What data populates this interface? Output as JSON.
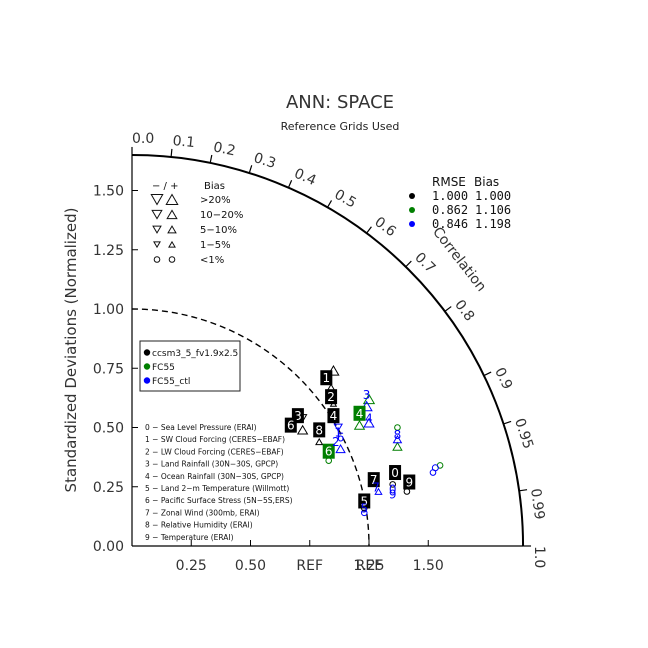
{
  "chart_data": {
    "type": "scatter",
    "title": "ANN: SPACE",
    "subtitle": "Reference Grids Used",
    "ylabel": "Standardized Deviations (Normalized)",
    "arc_label": "Correlation",
    "ref_label": "REF",
    "max_std": 1.65,
    "std_ticks": [
      "0.00",
      "0.25",
      "0.50",
      "0.75",
      "1.00",
      "1.25",
      "1.50"
    ],
    "x_ticks": [
      "0.25",
      "0.50",
      "REF",
      "1.25",
      "1.50"
    ],
    "corr_ticks": [
      "0.0",
      "0.1",
      "0.2",
      "0.3",
      "0.4",
      "0.5",
      "0.6",
      "0.7",
      "0.8",
      "0.9",
      "0.95",
      "0.99",
      "1.0"
    ],
    "bias_legend": {
      "header_minus_plus": "− / +",
      "header_bias": "Bias",
      "rows": [
        {
          "label": ">20%",
          "size": 5.2
        },
        {
          "label": "10−20%",
          "size": 4.4
        },
        {
          "label": "5−10%",
          "size": 3.6
        },
        {
          "label": "1−5%",
          "size": 2.8
        },
        {
          "label": "<1%",
          "size": 2.8
        }
      ]
    },
    "rmse_table": {
      "header_rmse": "RMSE",
      "header_bias": "Bias",
      "rows": [
        {
          "color": "#000000",
          "rmse": "1.000",
          "bias": "1.000"
        },
        {
          "color": "#007f00",
          "rmse": "0.862",
          "bias": "1.106"
        },
        {
          "color": "#0000ff",
          "rmse": "0.846",
          "bias": "1.198"
        }
      ]
    },
    "case_legend": [
      {
        "name": "ccsm3_5_fv1.9x2.5",
        "color": "#000000"
      },
      {
        "name": "FC55",
        "color": "#007f00"
      },
      {
        "name": "FC55_ctl",
        "color": "#0000ff"
      }
    ],
    "variables": [
      "0 − Sea Level Pressure (ERAI)",
      "1 − SW Cloud Forcing (CERES−EBAF)",
      "2 − LW Cloud Forcing (CERES−EBAF)",
      "3 − Land Rainfall (30N−30S, GPCP)",
      "4 − Ocean Rainfall (30N−30S, GPCP)",
      "5 − Land 2−m Temperature (Willmott)",
      "6 − Pacific Surface Stress (5N−5S,ERS)",
      "7 − Zonal Wind (300mb, ERAI)",
      "8 − Relative Humidity (ERAI)",
      "9 − Temperature (ERAI)"
    ],
    "series": [
      {
        "name": "ccsm3_5_fv1.9x2.5",
        "color": "#000000",
        "boxed": true,
        "points": [
          {
            "id": "0",
            "x": 1.11,
            "y": 0.31
          },
          {
            "id": "1",
            "x": 0.82,
            "y": 0.71
          },
          {
            "id": "2",
            "x": 0.84,
            "y": 0.63
          },
          {
            "id": "3",
            "x": 0.7,
            "y": 0.55
          },
          {
            "id": "4",
            "x": 0.85,
            "y": 0.55
          },
          {
            "id": "5",
            "x": 0.98,
            "y": 0.19
          },
          {
            "id": "6",
            "x": 0.67,
            "y": 0.51
          },
          {
            "id": "7",
            "x": 1.02,
            "y": 0.28
          },
          {
            "id": "8",
            "x": 0.79,
            "y": 0.49
          },
          {
            "id": "9",
            "x": 1.17,
            "y": 0.27
          }
        ]
      },
      {
        "name": "FC55",
        "color": "#007f00",
        "boxed": true,
        "points": [
          {
            "id": "4",
            "x": 0.96,
            "y": 0.56
          },
          {
            "id": "6",
            "x": 0.83,
            "y": 0.4
          }
        ]
      },
      {
        "name": "FC55_ctl",
        "color": "#0000ff",
        "boxed": false,
        "points": [
          {
            "id": "0",
            "x": 1.1,
            "y": 0.24
          },
          {
            "id": "1",
            "x": 0.87,
            "y": 0.48
          },
          {
            "id": "2",
            "x": 0.86,
            "y": 0.44
          },
          {
            "id": "3",
            "x": 0.99,
            "y": 0.64
          },
          {
            "id": "4",
            "x": 1.0,
            "y": 0.54
          },
          {
            "id": "5",
            "x": 0.98,
            "y": 0.16
          },
          {
            "id": "6",
            "x": 0.88,
            "y": 0.46
          },
          {
            "id": "7",
            "x": 1.03,
            "y": 0.25
          },
          {
            "id": "8",
            "x": 1.12,
            "y": 0.47
          },
          {
            "id": "9",
            "x": 1.1,
            "y": 0.22
          }
        ]
      }
    ],
    "bias_markers": [
      {
        "type": "up",
        "x": 0.85,
        "y": 0.74,
        "size": 4.8,
        "color": "#000000"
      },
      {
        "type": "up",
        "x": 0.84,
        "y": 0.67,
        "size": 3.0,
        "color": "#000000"
      },
      {
        "type": "up",
        "x": 0.85,
        "y": 0.6,
        "size": 2.6,
        "color": "#000000"
      },
      {
        "type": "up",
        "x": 0.72,
        "y": 0.49,
        "size": 4.4,
        "color": "#000000"
      },
      {
        "type": "up",
        "x": 0.79,
        "y": 0.44,
        "size": 3.0,
        "color": "#000000"
      },
      {
        "type": "down",
        "x": 0.72,
        "y": 0.54,
        "size": 3.6,
        "color": "#000000"
      },
      {
        "type": "up",
        "x": 1.0,
        "y": 0.62,
        "size": 4.8,
        "color": "#007f00"
      },
      {
        "type": "up",
        "x": 0.96,
        "y": 0.51,
        "size": 4.4,
        "color": "#007f00"
      },
      {
        "type": "up",
        "x": 1.12,
        "y": 0.42,
        "size": 4.0,
        "color": "#007f00"
      },
      {
        "type": "circle",
        "x": 1.12,
        "y": 0.5,
        "size": 2.8,
        "color": "#007f00"
      },
      {
        "type": "circle",
        "x": 0.83,
        "y": 0.36,
        "size": 2.8,
        "color": "#007f00"
      },
      {
        "type": "circle",
        "x": 1.3,
        "y": 0.34,
        "size": 2.8,
        "color": "#007f00"
      },
      {
        "type": "up",
        "x": 0.99,
        "y": 0.59,
        "size": 4.8,
        "color": "#0000ff"
      },
      {
        "type": "up",
        "x": 1.0,
        "y": 0.52,
        "size": 4.4,
        "color": "#0000ff"
      },
      {
        "type": "up",
        "x": 0.88,
        "y": 0.41,
        "size": 4.0,
        "color": "#0000ff"
      },
      {
        "type": "down",
        "x": 0.87,
        "y": 0.5,
        "size": 3.6,
        "color": "#0000ff"
      },
      {
        "type": "up",
        "x": 1.04,
        "y": 0.23,
        "size": 3.0,
        "color": "#0000ff"
      },
      {
        "type": "up",
        "x": 1.12,
        "y": 0.45,
        "size": 3.6,
        "color": "#0000ff"
      },
      {
        "type": "circle",
        "x": 0.98,
        "y": 0.14,
        "size": 2.8,
        "color": "#0000ff"
      },
      {
        "type": "circle",
        "x": 1.28,
        "y": 0.33,
        "size": 3.0,
        "color": "#0000ff"
      },
      {
        "type": "circle",
        "x": 1.27,
        "y": 0.31,
        "size": 2.8,
        "color": "#0000ff"
      },
      {
        "type": "circle",
        "x": 1.1,
        "y": 0.26,
        "size": 2.8,
        "color": "#000000"
      },
      {
        "type": "circle",
        "x": 1.16,
        "y": 0.23,
        "size": 2.8,
        "color": "#000000"
      },
      {
        "type": "circle",
        "x": 0.98,
        "y": 0.16,
        "size": 2.8,
        "color": "#000000"
      }
    ]
  }
}
